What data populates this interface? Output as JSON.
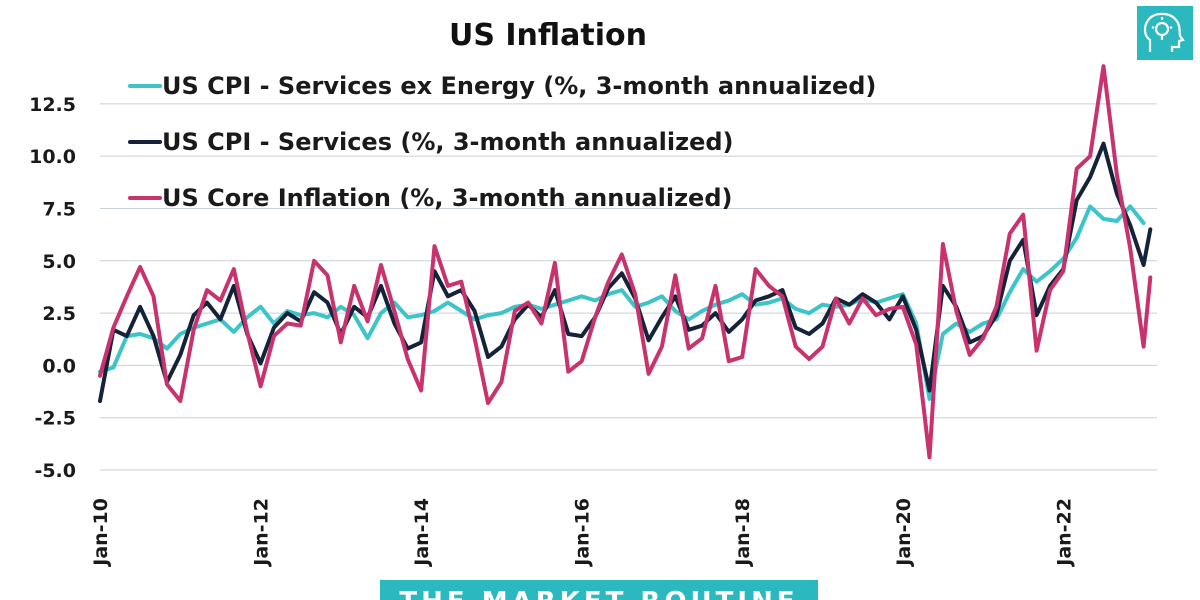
{
  "chart_data": {
    "type": "line",
    "title": "US Inflation",
    "xlabel": "",
    "ylabel": "",
    "ylim": [
      -5,
      14.5
    ],
    "yticks": [
      -5.0,
      -2.5,
      0.0,
      2.5,
      5.0,
      7.5,
      10.0,
      12.5
    ],
    "ytick_labels": [
      "-5.0",
      "-2.5",
      "0.0",
      "2.5",
      "5.0",
      "7.5",
      "10.0",
      "12.5"
    ],
    "xlim": [
      "2010-01",
      "2023-03"
    ],
    "xticks": [
      "2010-01",
      "2012-01",
      "2014-01",
      "2016-01",
      "2018-01",
      "2020-01",
      "2022-01"
    ],
    "xtick_labels": [
      "Jan-10",
      "Jan-12",
      "Jan-14",
      "Jan-16",
      "Jan-18",
      "Jan-20",
      "Jan-22"
    ],
    "grid": true,
    "legend_position": "top-left",
    "series": [
      {
        "name": "US CPI - Services ex Energy (%, 3-month annualized)",
        "color": "#3cc4c8",
        "points": [
          [
            "2010-01",
            -0.3
          ],
          [
            "2010-03",
            -0.1
          ],
          [
            "2010-05",
            1.4
          ],
          [
            "2010-07",
            1.5
          ],
          [
            "2010-09",
            1.3
          ],
          [
            "2010-11",
            0.8
          ],
          [
            "2011-01",
            1.5
          ],
          [
            "2011-03",
            1.8
          ],
          [
            "2011-05",
            2.0
          ],
          [
            "2011-07",
            2.2
          ],
          [
            "2011-09",
            1.6
          ],
          [
            "2011-11",
            2.3
          ],
          [
            "2012-01",
            2.8
          ],
          [
            "2012-03",
            2.0
          ],
          [
            "2012-05",
            2.6
          ],
          [
            "2012-07",
            2.4
          ],
          [
            "2012-09",
            2.5
          ],
          [
            "2012-11",
            2.3
          ],
          [
            "2013-01",
            2.8
          ],
          [
            "2013-03",
            2.4
          ],
          [
            "2013-05",
            1.3
          ],
          [
            "2013-07",
            2.5
          ],
          [
            "2013-09",
            3.0
          ],
          [
            "2013-11",
            2.3
          ],
          [
            "2014-01",
            2.4
          ],
          [
            "2014-03",
            2.6
          ],
          [
            "2014-05",
            3.0
          ],
          [
            "2014-07",
            2.6
          ],
          [
            "2014-09",
            2.2
          ],
          [
            "2014-11",
            2.4
          ],
          [
            "2015-01",
            2.5
          ],
          [
            "2015-03",
            2.8
          ],
          [
            "2015-05",
            2.9
          ],
          [
            "2015-07",
            2.7
          ],
          [
            "2015-09",
            2.9
          ],
          [
            "2015-11",
            3.1
          ],
          [
            "2016-01",
            3.3
          ],
          [
            "2016-03",
            3.1
          ],
          [
            "2016-05",
            3.4
          ],
          [
            "2016-07",
            3.6
          ],
          [
            "2016-09",
            2.8
          ],
          [
            "2016-11",
            3.0
          ],
          [
            "2017-01",
            3.3
          ],
          [
            "2017-03",
            2.6
          ],
          [
            "2017-05",
            2.2
          ],
          [
            "2017-07",
            2.6
          ],
          [
            "2017-09",
            2.9
          ],
          [
            "2017-11",
            3.1
          ],
          [
            "2018-01",
            3.4
          ],
          [
            "2018-03",
            2.9
          ],
          [
            "2018-05",
            3.0
          ],
          [
            "2018-07",
            3.2
          ],
          [
            "2018-09",
            2.7
          ],
          [
            "2018-11",
            2.5
          ],
          [
            "2019-01",
            2.9
          ],
          [
            "2019-03",
            2.8
          ],
          [
            "2019-05",
            2.9
          ],
          [
            "2019-07",
            3.2
          ],
          [
            "2019-09",
            3.0
          ],
          [
            "2019-11",
            3.2
          ],
          [
            "2020-01",
            3.4
          ],
          [
            "2020-03",
            2.0
          ],
          [
            "2020-05",
            -1.6
          ],
          [
            "2020-07",
            1.5
          ],
          [
            "2020-09",
            2.0
          ],
          [
            "2020-11",
            1.6
          ],
          [
            "2021-01",
            2.0
          ],
          [
            "2021-03",
            2.2
          ],
          [
            "2021-05",
            3.5
          ],
          [
            "2021-07",
            4.6
          ],
          [
            "2021-09",
            4.0
          ],
          [
            "2021-11",
            4.5
          ],
          [
            "2022-01",
            5.1
          ],
          [
            "2022-03",
            6.1
          ],
          [
            "2022-05",
            7.6
          ],
          [
            "2022-07",
            7.0
          ],
          [
            "2022-09",
            6.9
          ],
          [
            "2022-11",
            7.6
          ],
          [
            "2023-01",
            6.8
          ]
        ]
      },
      {
        "name": "US CPI - Services (%, 3-month annualized)",
        "color": "#14233a",
        "points": [
          [
            "2010-01",
            -1.7
          ],
          [
            "2010-03",
            1.7
          ],
          [
            "2010-05",
            1.4
          ],
          [
            "2010-07",
            2.8
          ],
          [
            "2010-09",
            1.4
          ],
          [
            "2010-11",
            -0.8
          ],
          [
            "2011-01",
            0.5
          ],
          [
            "2011-03",
            2.4
          ],
          [
            "2011-05",
            3.0
          ],
          [
            "2011-07",
            2.2
          ],
          [
            "2011-09",
            3.8
          ],
          [
            "2011-11",
            1.5
          ],
          [
            "2012-01",
            0.1
          ],
          [
            "2012-03",
            1.8
          ],
          [
            "2012-05",
            2.5
          ],
          [
            "2012-07",
            2.1
          ],
          [
            "2012-09",
            3.5
          ],
          [
            "2012-11",
            3.0
          ],
          [
            "2013-01",
            1.5
          ],
          [
            "2013-03",
            2.8
          ],
          [
            "2013-05",
            2.3
          ],
          [
            "2013-07",
            3.8
          ],
          [
            "2013-09",
            2.0
          ],
          [
            "2013-11",
            0.8
          ],
          [
            "2014-01",
            1.1
          ],
          [
            "2014-03",
            4.5
          ],
          [
            "2014-05",
            3.3
          ],
          [
            "2014-07",
            3.6
          ],
          [
            "2014-09",
            2.6
          ],
          [
            "2014-11",
            0.4
          ],
          [
            "2015-01",
            0.9
          ],
          [
            "2015-03",
            2.2
          ],
          [
            "2015-05",
            2.9
          ],
          [
            "2015-07",
            2.3
          ],
          [
            "2015-09",
            3.6
          ],
          [
            "2015-11",
            1.5
          ],
          [
            "2016-01",
            1.4
          ],
          [
            "2016-03",
            2.3
          ],
          [
            "2016-05",
            3.7
          ],
          [
            "2016-07",
            4.4
          ],
          [
            "2016-09",
            3.2
          ],
          [
            "2016-11",
            1.2
          ],
          [
            "2017-01",
            2.3
          ],
          [
            "2017-03",
            3.3
          ],
          [
            "2017-05",
            1.7
          ],
          [
            "2017-07",
            1.9
          ],
          [
            "2017-09",
            2.5
          ],
          [
            "2017-11",
            1.6
          ],
          [
            "2018-01",
            2.2
          ],
          [
            "2018-03",
            3.1
          ],
          [
            "2018-05",
            3.3
          ],
          [
            "2018-07",
            3.6
          ],
          [
            "2018-09",
            1.8
          ],
          [
            "2018-11",
            1.5
          ],
          [
            "2019-01",
            2.0
          ],
          [
            "2019-03",
            3.2
          ],
          [
            "2019-05",
            2.9
          ],
          [
            "2019-07",
            3.4
          ],
          [
            "2019-09",
            3.0
          ],
          [
            "2019-11",
            2.2
          ],
          [
            "2020-01",
            3.3
          ],
          [
            "2020-03",
            1.7
          ],
          [
            "2020-05",
            -1.2
          ],
          [
            "2020-07",
            3.8
          ],
          [
            "2020-09",
            2.8
          ],
          [
            "2020-11",
            1.1
          ],
          [
            "2021-01",
            1.4
          ],
          [
            "2021-03",
            2.4
          ],
          [
            "2021-05",
            5.0
          ],
          [
            "2021-07",
            6.0
          ],
          [
            "2021-09",
            2.4
          ],
          [
            "2021-11",
            3.8
          ],
          [
            "2022-01",
            4.6
          ],
          [
            "2022-03",
            7.9
          ],
          [
            "2022-05",
            9.0
          ],
          [
            "2022-07",
            10.6
          ],
          [
            "2022-09",
            8.2
          ],
          [
            "2022-11",
            6.7
          ],
          [
            "2023-01",
            4.8
          ],
          [
            "2023-02",
            6.5
          ]
        ]
      },
      {
        "name": "US Core Inflation (%, 3-month annualized)",
        "color": "#c8336e",
        "points": [
          [
            "2010-01",
            -0.5
          ],
          [
            "2010-03",
            1.8
          ],
          [
            "2010-05",
            3.3
          ],
          [
            "2010-07",
            4.7
          ],
          [
            "2010-09",
            3.3
          ],
          [
            "2010-11",
            -0.9
          ],
          [
            "2011-01",
            -1.7
          ],
          [
            "2011-03",
            1.7
          ],
          [
            "2011-05",
            3.6
          ],
          [
            "2011-07",
            3.1
          ],
          [
            "2011-09",
            4.6
          ],
          [
            "2011-11",
            1.6
          ],
          [
            "2012-01",
            -1.0
          ],
          [
            "2012-03",
            1.4
          ],
          [
            "2012-05",
            2.0
          ],
          [
            "2012-07",
            1.9
          ],
          [
            "2012-09",
            5.0
          ],
          [
            "2012-11",
            4.3
          ],
          [
            "2013-01",
            1.1
          ],
          [
            "2013-03",
            3.8
          ],
          [
            "2013-05",
            2.1
          ],
          [
            "2013-07",
            4.8
          ],
          [
            "2013-09",
            2.6
          ],
          [
            "2013-11",
            0.3
          ],
          [
            "2014-01",
            -1.2
          ],
          [
            "2014-03",
            5.7
          ],
          [
            "2014-05",
            3.8
          ],
          [
            "2014-07",
            4.0
          ],
          [
            "2014-09",
            1.3
          ],
          [
            "2014-11",
            -1.8
          ],
          [
            "2015-01",
            -0.8
          ],
          [
            "2015-03",
            2.6
          ],
          [
            "2015-05",
            3.0
          ],
          [
            "2015-07",
            2.0
          ],
          [
            "2015-09",
            4.9
          ],
          [
            "2015-11",
            -0.3
          ],
          [
            "2016-01",
            0.2
          ],
          [
            "2016-03",
            2.3
          ],
          [
            "2016-05",
            4.0
          ],
          [
            "2016-07",
            5.3
          ],
          [
            "2016-09",
            3.4
          ],
          [
            "2016-11",
            -0.4
          ],
          [
            "2017-01",
            0.9
          ],
          [
            "2017-03",
            4.3
          ],
          [
            "2017-05",
            0.8
          ],
          [
            "2017-07",
            1.3
          ],
          [
            "2017-09",
            3.8
          ],
          [
            "2017-11",
            0.2
          ],
          [
            "2018-01",
            0.4
          ],
          [
            "2018-03",
            4.6
          ],
          [
            "2018-05",
            3.8
          ],
          [
            "2018-07",
            3.3
          ],
          [
            "2018-09",
            0.9
          ],
          [
            "2018-11",
            0.3
          ],
          [
            "2019-01",
            0.9
          ],
          [
            "2019-03",
            3.2
          ],
          [
            "2019-05",
            2.0
          ],
          [
            "2019-07",
            3.2
          ],
          [
            "2019-09",
            2.4
          ],
          [
            "2019-11",
            2.7
          ],
          [
            "2020-01",
            2.8
          ],
          [
            "2020-03",
            1.0
          ],
          [
            "2020-05",
            -4.4
          ],
          [
            "2020-07",
            5.8
          ],
          [
            "2020-09",
            2.6
          ],
          [
            "2020-11",
            0.5
          ],
          [
            "2021-01",
            1.3
          ],
          [
            "2021-03",
            2.8
          ],
          [
            "2021-05",
            6.3
          ],
          [
            "2021-07",
            7.2
          ],
          [
            "2021-09",
            0.7
          ],
          [
            "2021-11",
            3.6
          ],
          [
            "2022-01",
            4.5
          ],
          [
            "2022-03",
            9.4
          ],
          [
            "2022-05",
            10.0
          ],
          [
            "2022-07",
            14.3
          ],
          [
            "2022-09",
            9.1
          ],
          [
            "2022-11",
            5.6
          ],
          [
            "2023-01",
            0.9
          ],
          [
            "2023-02",
            4.2
          ]
        ]
      }
    ]
  },
  "branding": {
    "footer_text": "THE MARKET ROUTINE",
    "logo_icon": "lightbulb-head-icon",
    "accent_color": "#2bb9bf"
  }
}
